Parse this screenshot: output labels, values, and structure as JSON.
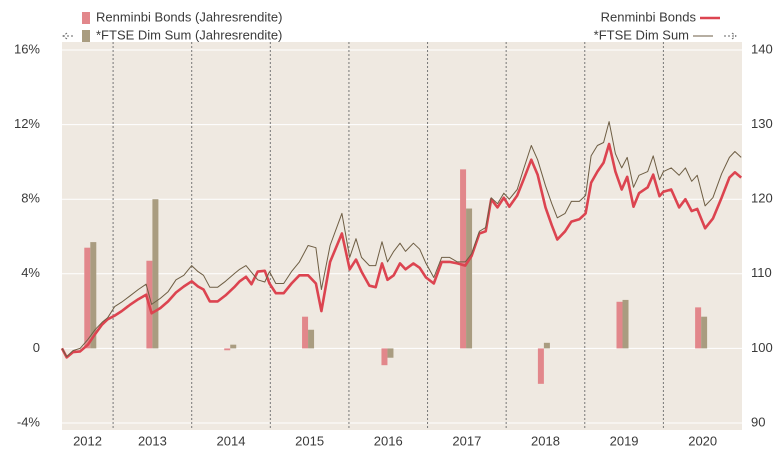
{
  "chart_data": {
    "type": "combo",
    "categories": [
      "2012",
      "2013",
      "2014",
      "2015",
      "2016",
      "2017",
      "2018",
      "2019",
      "2020"
    ],
    "xlim": [
      2012.35,
      2021.0
    ],
    "xticks": [
      2013,
      2014,
      2015,
      2016,
      2017,
      2018,
      2019,
      2020
    ],
    "ylim": [
      -4,
      16
    ],
    "yticks": [
      {
        "value": -4,
        "label": "-4%"
      },
      {
        "value": 0,
        "label": "0"
      },
      {
        "value": 4,
        "label": "4%"
      },
      {
        "value": 8,
        "label": "8%"
      },
      {
        "value": 12,
        "label": "12%"
      },
      {
        "value": 16,
        "label": "16%"
      }
    ],
    "y2lim": [
      90,
      140
    ],
    "y2ticks": [
      90,
      100,
      110,
      120,
      130,
      140
    ],
    "bar_x": [
      2012.71,
      2013.5,
      2014.49,
      2015.48,
      2016.49,
      2017.49,
      2018.48,
      2019.48,
      2020.48
    ],
    "x": [
      2012.35,
      2012.41,
      2012.49,
      2012.58,
      2012.68,
      2012.77,
      2012.86,
      2012.93,
      2013.02,
      2013.11,
      2013.21,
      2013.32,
      2013.42,
      2013.49,
      2013.6,
      2013.7,
      2013.8,
      2013.9,
      2014.0,
      2014.08,
      2014.15,
      2014.23,
      2014.33,
      2014.43,
      2014.54,
      2014.61,
      2014.69,
      2014.76,
      2014.84,
      2014.93,
      2014.99,
      2015.07,
      2015.17,
      2015.27,
      2015.37,
      2015.48,
      2015.58,
      2015.65,
      2015.76,
      2015.91,
      2016.01,
      2016.09,
      2016.16,
      2016.26,
      2016.34,
      2016.42,
      2016.49,
      2016.57,
      2016.65,
      2016.72,
      2016.82,
      2016.9,
      2016.98,
      2017.08,
      2017.18,
      2017.28,
      2017.38,
      2017.48,
      2017.56,
      2017.66,
      2017.74,
      2017.81,
      2017.89,
      2017.97,
      2018.04,
      2018.14,
      2018.22,
      2018.32,
      2018.4,
      2018.5,
      2018.58,
      2018.65,
      2018.75,
      2018.83,
      2018.93,
      2019.01,
      2019.08,
      2019.16,
      2019.24,
      2019.31,
      2019.39,
      2019.47,
      2019.54,
      2019.62,
      2019.69,
      2019.8,
      2019.87,
      2019.95,
      2020.0,
      2020.1,
      2020.2,
      2020.28,
      2020.36,
      2020.43,
      2020.53,
      2020.63,
      2020.74,
      2020.84,
      2020.91,
      2020.99
    ],
    "series": [
      {
        "name": "Renminbi Bonds (Jahresrendite)",
        "kind": "bar",
        "axis": "y",
        "color": "#e2878b",
        "values": [
          5.4,
          4.7,
          -0.1,
          1.7,
          -0.9,
          9.6,
          -1.9,
          2.5,
          2.2
        ]
      },
      {
        "name": "*FTSE Dim Sum (Jahresrendite)",
        "kind": "bar",
        "axis": "y",
        "color": "#a99c80",
        "values": [
          5.7,
          8.0,
          0.2,
          1.0,
          -0.5,
          7.5,
          0.3,
          2.6,
          1.7
        ]
      },
      {
        "name": "Renminbi Bonds",
        "kind": "line",
        "axis": "y2",
        "color": "#dc4450",
        "width": 2.6,
        "values": [
          100,
          98.8,
          99.5,
          99.6,
          100.5,
          101.9,
          103.2,
          103.9,
          104.4,
          105,
          105.8,
          106.6,
          107.2,
          104.7,
          105.4,
          106.3,
          107.5,
          108.3,
          109,
          108.3,
          107.9,
          106.3,
          106.3,
          107.1,
          108.2,
          109,
          109.6,
          108.6,
          110.3,
          110.4,
          108.7,
          107.4,
          107.4,
          108.7,
          109.8,
          109.8,
          108.7,
          105,
          111.6,
          115.4,
          110.6,
          111.9,
          110.3,
          108.4,
          108.2,
          111.4,
          109.2,
          109.8,
          111.4,
          110.6,
          111.4,
          110.8,
          109.5,
          108.7,
          111.6,
          111.6,
          111.4,
          111.1,
          112.4,
          115.4,
          115.7,
          120,
          118.9,
          120.2,
          119,
          120.5,
          122.6,
          125.3,
          123.3,
          118.9,
          116.5,
          114.6,
          115.7,
          117,
          117.3,
          118.1,
          122.2,
          123.7,
          124.9,
          127.4,
          123.7,
          121.3,
          123,
          119,
          120.8,
          121.6,
          123.3,
          120.4,
          121,
          121.3,
          118.9,
          120,
          118.4,
          118.7,
          116.1,
          117.4,
          120.2,
          122.9,
          123.6,
          122.9
        ]
      },
      {
        "name": "*FTSE Dim Sum",
        "kind": "line",
        "axis": "y2",
        "color": "#6e5e44",
        "width": 1,
        "values": [
          100,
          98.9,
          99.7,
          100,
          101.2,
          102.5,
          103.5,
          104.1,
          105.6,
          106.2,
          107,
          107.9,
          108.6,
          105.9,
          106.7,
          107.6,
          109.2,
          109.8,
          111.1,
          110.3,
          109.8,
          108.2,
          108.2,
          109,
          110,
          110.6,
          111.1,
          110.2,
          109.2,
          108.9,
          110.3,
          108.7,
          108.7,
          110.3,
          111.6,
          113.8,
          113.5,
          107.9,
          113.8,
          118.1,
          112.2,
          114.7,
          112.2,
          111.1,
          111.1,
          114.3,
          111.6,
          113,
          114.1,
          113,
          114.1,
          113.3,
          111.4,
          109.5,
          112.2,
          112.2,
          111.6,
          111.6,
          112.7,
          115.7,
          116.2,
          120.2,
          119.4,
          120.8,
          120,
          121.3,
          124,
          127.2,
          125.3,
          121.8,
          119.4,
          117.5,
          118.1,
          119.7,
          119.7,
          120.5,
          125.8,
          127.2,
          127.6,
          130.4,
          126.1,
          124.2,
          125.6,
          121.6,
          123.2,
          123.7,
          125.8,
          122.6,
          123.7,
          124.2,
          123.2,
          124.2,
          122.4,
          123.2,
          119.1,
          120.2,
          123.4,
          125.6,
          126.4,
          125.6
        ]
      }
    ]
  }
}
